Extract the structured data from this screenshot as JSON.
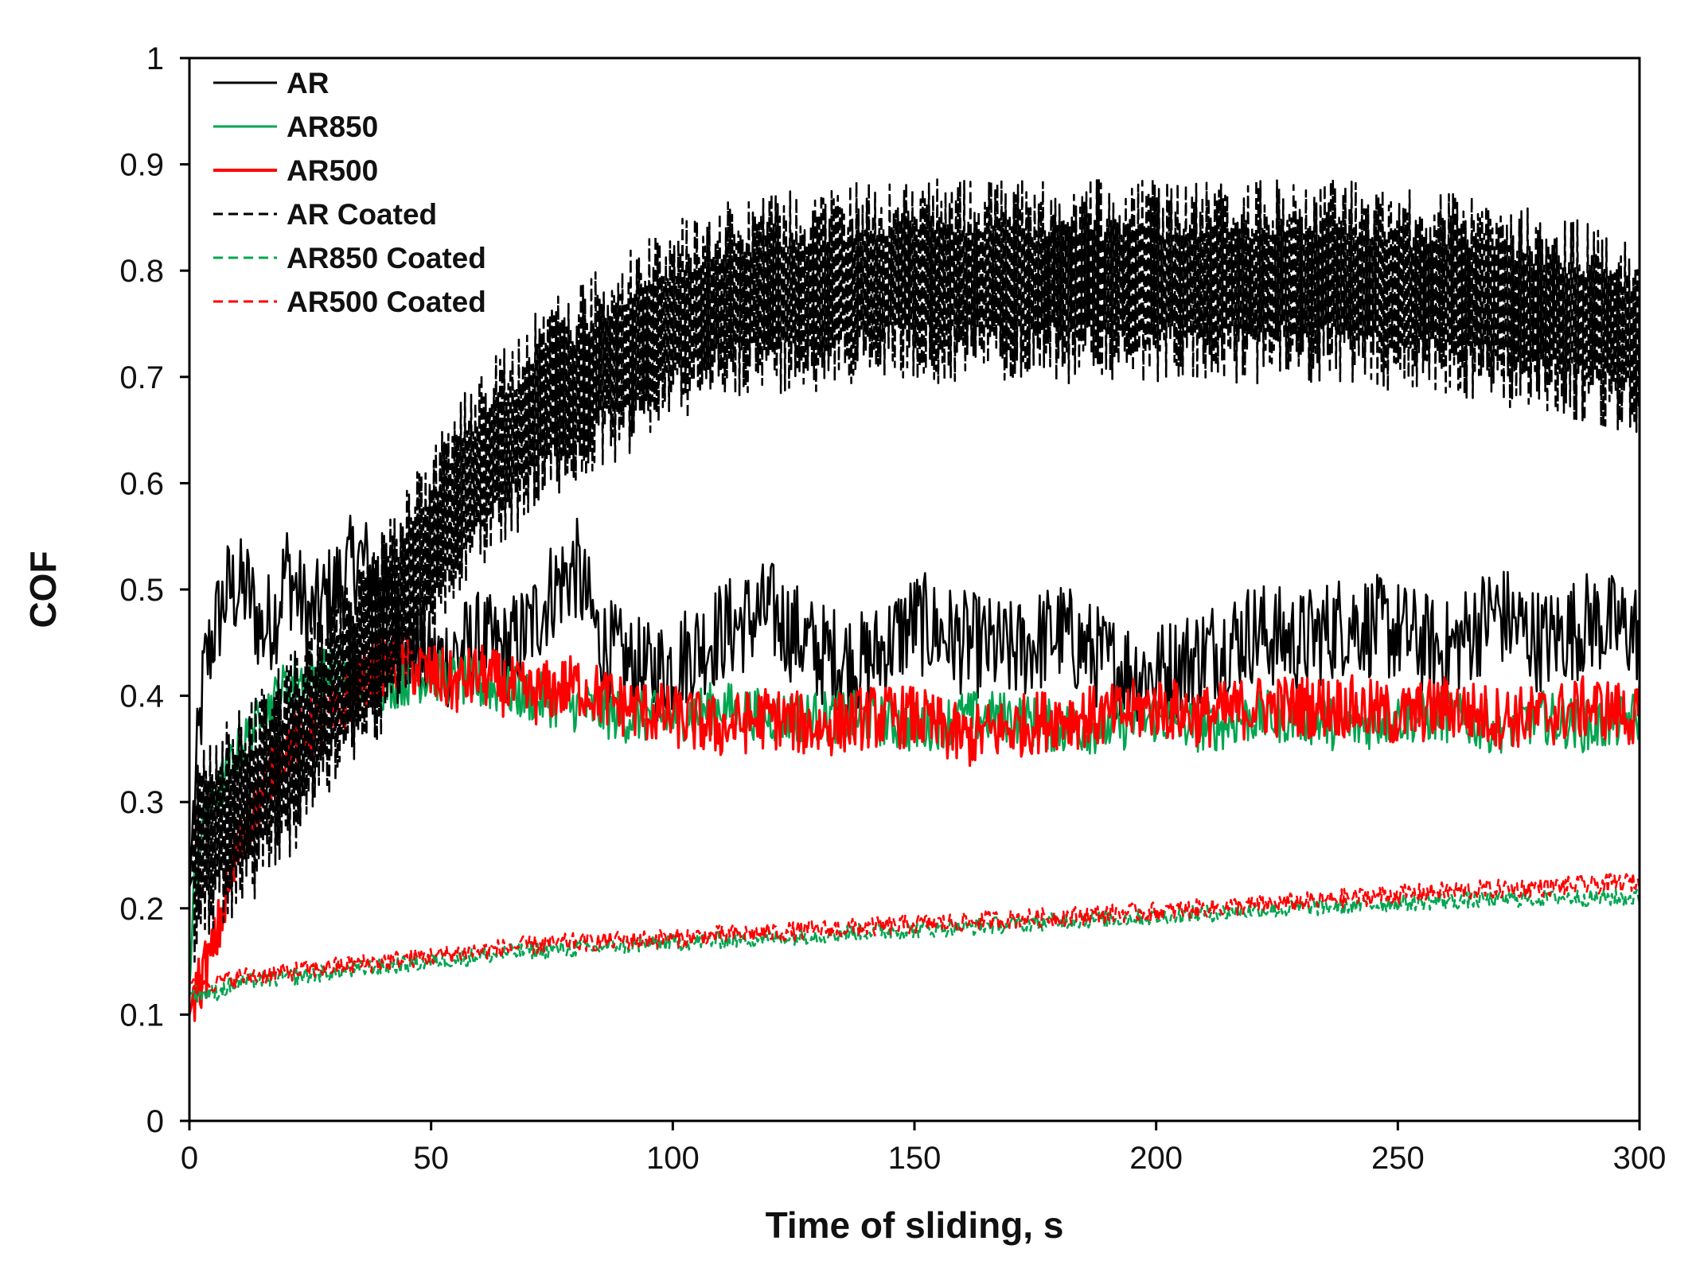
{
  "chart_data": {
    "type": "line",
    "title": "",
    "xlabel": "Time of sliding, s",
    "ylabel": "COF",
    "xlim": [
      0,
      300
    ],
    "ylim": [
      0,
      1
    ],
    "grid": false,
    "legend_position": "top-left",
    "x_ticks": [
      {
        "value": 0,
        "label": "0"
      },
      {
        "value": 50,
        "label": "50"
      },
      {
        "value": 100,
        "label": "100"
      },
      {
        "value": 150,
        "label": "150"
      },
      {
        "value": 200,
        "label": "200"
      },
      {
        "value": 250,
        "label": "250"
      },
      {
        "value": 300,
        "label": "300"
      }
    ],
    "y_ticks": [
      {
        "value": 0,
        "label": "0"
      },
      {
        "value": 0.1,
        "label": "0.1"
      },
      {
        "value": 0.2,
        "label": "0.2"
      },
      {
        "value": 0.3,
        "label": "0.3"
      },
      {
        "value": 0.4,
        "label": "0.4"
      },
      {
        "value": 0.5,
        "label": "0.5"
      },
      {
        "value": 0.6,
        "label": "0.6"
      },
      {
        "value": 0.7,
        "label": "0.7"
      },
      {
        "value": 0.8,
        "label": "0.8"
      },
      {
        "value": 0.9,
        "label": "0.9"
      },
      {
        "value": 1,
        "label": "1"
      }
    ],
    "series": [
      {
        "name": "AR",
        "color": "#000000",
        "style": "solid",
        "x": [
          0,
          1,
          2,
          3,
          5,
          8,
          12,
          15,
          18,
          20,
          25,
          30,
          35,
          40,
          45,
          50,
          55,
          60,
          65,
          70,
          75,
          80,
          85,
          90,
          95,
          100,
          110,
          120,
          130,
          140,
          150,
          160,
          170,
          180,
          190,
          200,
          210,
          220,
          230,
          240,
          250,
          260,
          270,
          280,
          290,
          300
        ],
        "y": [
          0.22,
          0.3,
          0.36,
          0.42,
          0.46,
          0.5,
          0.5,
          0.46,
          0.48,
          0.52,
          0.47,
          0.5,
          0.53,
          0.5,
          0.45,
          0.43,
          0.44,
          0.45,
          0.44,
          0.46,
          0.5,
          0.52,
          0.45,
          0.43,
          0.42,
          0.43,
          0.46,
          0.48,
          0.44,
          0.43,
          0.47,
          0.45,
          0.44,
          0.46,
          0.43,
          0.42,
          0.44,
          0.46,
          0.45,
          0.47,
          0.46,
          0.44,
          0.48,
          0.45,
          0.47,
          0.46
        ]
      },
      {
        "name": "AR850",
        "color": "#00a550",
        "style": "solid",
        "x": [
          0,
          1,
          2,
          3,
          5,
          8,
          12,
          15,
          20,
          25,
          30,
          40,
          50,
          60,
          70,
          80,
          90,
          100,
          110,
          120,
          130,
          140,
          150,
          160,
          170,
          180,
          190,
          200,
          210,
          220,
          230,
          240,
          250,
          260,
          270,
          280,
          290,
          300
        ],
        "y": [
          0.12,
          0.22,
          0.26,
          0.28,
          0.3,
          0.33,
          0.36,
          0.38,
          0.41,
          0.42,
          0.42,
          0.41,
          0.42,
          0.41,
          0.4,
          0.39,
          0.38,
          0.38,
          0.39,
          0.38,
          0.38,
          0.38,
          0.37,
          0.38,
          0.38,
          0.37,
          0.37,
          0.38,
          0.37,
          0.38,
          0.38,
          0.37,
          0.38,
          0.38,
          0.37,
          0.38,
          0.37,
          0.38
        ]
      },
      {
        "name": "AR500",
        "color": "#ff0000",
        "style": "solid",
        "x": [
          0,
          1,
          2,
          3,
          5,
          7,
          10,
          12,
          15,
          20,
          25,
          30,
          35,
          40,
          45,
          50,
          55,
          60,
          70,
          80,
          90,
          100,
          110,
          120,
          130,
          140,
          150,
          160,
          170,
          180,
          190,
          200,
          210,
          220,
          230,
          240,
          250,
          260,
          270,
          280,
          290,
          300
        ],
        "y": [
          0.1,
          0.12,
          0.13,
          0.14,
          0.16,
          0.2,
          0.25,
          0.28,
          0.31,
          0.35,
          0.37,
          0.38,
          0.41,
          0.43,
          0.43,
          0.42,
          0.41,
          0.42,
          0.4,
          0.41,
          0.39,
          0.38,
          0.37,
          0.38,
          0.37,
          0.38,
          0.38,
          0.36,
          0.37,
          0.38,
          0.38,
          0.39,
          0.38,
          0.39,
          0.39,
          0.39,
          0.38,
          0.39,
          0.38,
          0.38,
          0.39,
          0.38
        ]
      },
      {
        "name": "AR Coated",
        "color": "#000000",
        "style": "dashed",
        "x": [
          0,
          2,
          5,
          10,
          15,
          20,
          25,
          30,
          35,
          40,
          45,
          50,
          55,
          60,
          65,
          70,
          75,
          80,
          85,
          90,
          95,
          100,
          110,
          120,
          130,
          140,
          150,
          160,
          170,
          180,
          190,
          200,
          210,
          220,
          230,
          240,
          250,
          260,
          270,
          280,
          290,
          300
        ],
        "y": [
          0.22,
          0.25,
          0.27,
          0.29,
          0.31,
          0.34,
          0.37,
          0.4,
          0.43,
          0.46,
          0.5,
          0.54,
          0.58,
          0.61,
          0.63,
          0.66,
          0.68,
          0.69,
          0.71,
          0.72,
          0.74,
          0.75,
          0.77,
          0.78,
          0.78,
          0.79,
          0.79,
          0.79,
          0.79,
          0.79,
          0.79,
          0.79,
          0.79,
          0.79,
          0.79,
          0.79,
          0.78,
          0.78,
          0.77,
          0.76,
          0.75,
          0.74
        ]
      },
      {
        "name": "AR850 Coated",
        "color": "#00a550",
        "style": "dashed",
        "x": [
          0,
          5,
          10,
          20,
          30,
          40,
          50,
          60,
          70,
          80,
          90,
          100,
          110,
          120,
          130,
          140,
          150,
          160,
          170,
          180,
          190,
          200,
          210,
          220,
          230,
          240,
          250,
          260,
          270,
          280,
          290,
          300
        ],
        "y": [
          0.12,
          0.12,
          0.13,
          0.135,
          0.14,
          0.145,
          0.15,
          0.155,
          0.16,
          0.162,
          0.165,
          0.168,
          0.17,
          0.172,
          0.175,
          0.178,
          0.18,
          0.182,
          0.185,
          0.188,
          0.19,
          0.192,
          0.195,
          0.198,
          0.2,
          0.202,
          0.205,
          0.207,
          0.208,
          0.21,
          0.21,
          0.21
        ]
      },
      {
        "name": "AR500 Coated",
        "color": "#ff0000",
        "style": "dashed",
        "x": [
          0,
          5,
          10,
          20,
          30,
          40,
          50,
          60,
          70,
          80,
          90,
          100,
          110,
          120,
          130,
          140,
          150,
          160,
          170,
          180,
          190,
          200,
          210,
          220,
          230,
          240,
          250,
          260,
          270,
          280,
          290,
          300
        ],
        "y": [
          0.13,
          0.13,
          0.135,
          0.14,
          0.145,
          0.15,
          0.155,
          0.16,
          0.165,
          0.168,
          0.17,
          0.172,
          0.175,
          0.177,
          0.18,
          0.182,
          0.185,
          0.187,
          0.19,
          0.192,
          0.195,
          0.197,
          0.2,
          0.203,
          0.206,
          0.21,
          0.213,
          0.216,
          0.218,
          0.22,
          0.222,
          0.225
        ]
      }
    ]
  }
}
